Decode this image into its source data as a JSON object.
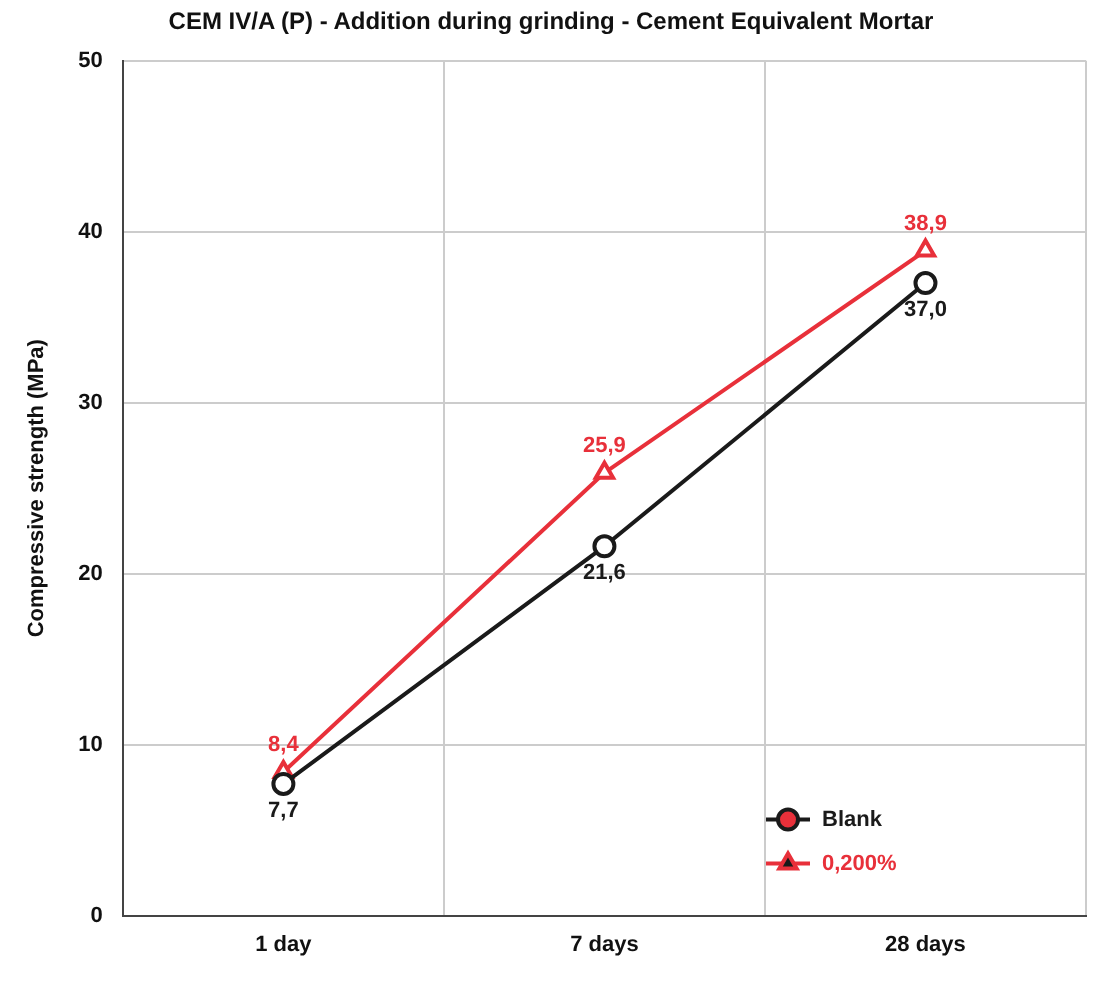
{
  "chart_data": {
    "type": "line",
    "title": "CEM IV/A (P) - Addition during grinding - Cement Equivalent Mortar",
    "ylabel": "Compressive strength (MPa)",
    "categories": [
      "1 day",
      "7 days",
      "28 days"
    ],
    "series": [
      {
        "name": "Blank",
        "color": "#1a1a1a",
        "values": [
          7.7,
          21.6,
          37.0
        ],
        "marker": "circle",
        "value_labels": [
          "7,7",
          "21,6",
          "37,0"
        ]
      },
      {
        "name": "0,200%",
        "color": "#e8303a",
        "values": [
          8.4,
          25.9,
          38.9
        ],
        "marker": "triangle",
        "value_labels": [
          "8,4",
          "25,9",
          "38,9"
        ]
      }
    ],
    "ylim": [
      0,
      50
    ],
    "yticks": [
      0,
      10,
      20,
      30,
      40,
      50
    ],
    "grid": true,
    "legend": "bottom right",
    "line_style": "solid"
  }
}
